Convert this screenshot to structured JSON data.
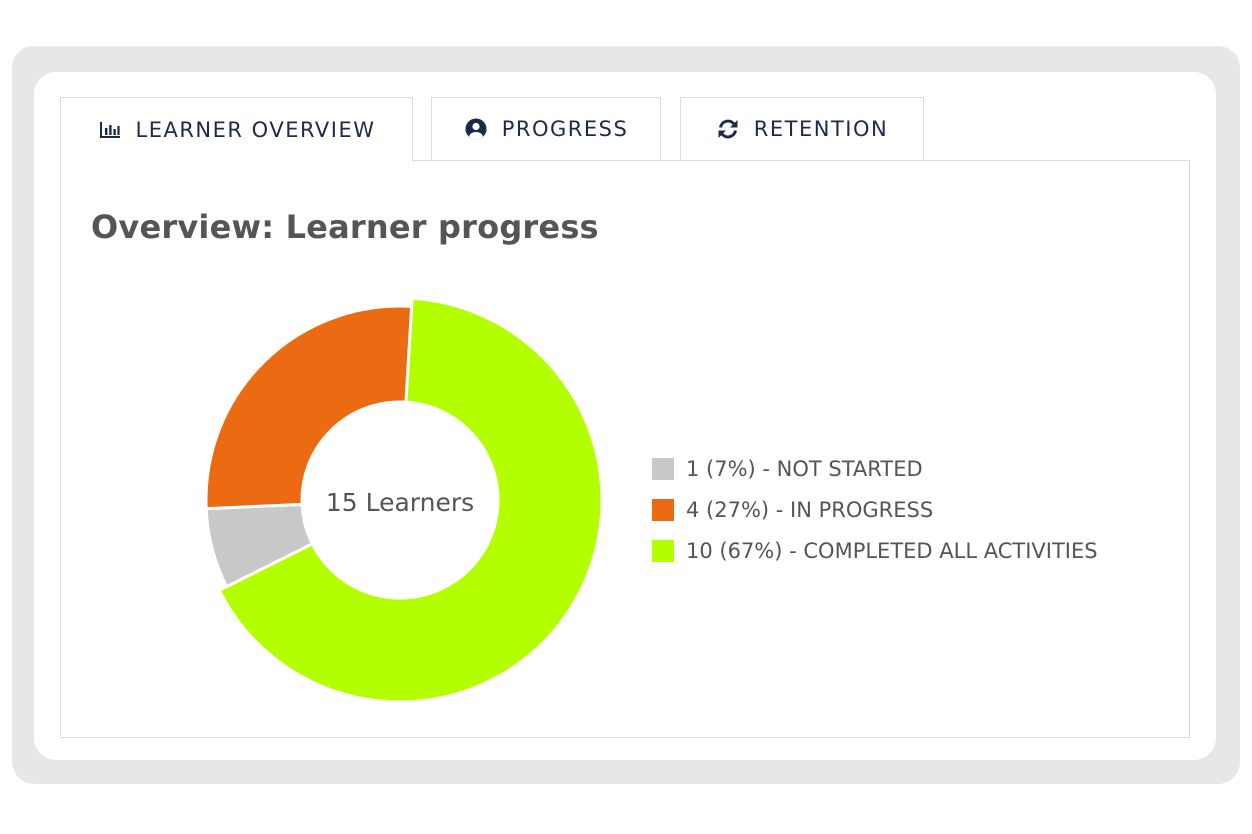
{
  "tabs": [
    {
      "label": "LEARNER OVERVIEW",
      "icon": "bar-chart-icon",
      "active": true
    },
    {
      "label": "PROGRESS",
      "icon": "user-circle-icon",
      "active": false
    },
    {
      "label": "RETENTION",
      "icon": "refresh-icon",
      "active": false
    }
  ],
  "panel": {
    "title": "Overview: Learner progress"
  },
  "colors": {
    "accent_navy": "#1e2a4a",
    "not_started": "#c8c8c8",
    "in_progress": "#ec6b12",
    "completed": "#b3ff00"
  },
  "chart_data": {
    "type": "pie",
    "center_label": "15 Learners",
    "total": 15,
    "slices": [
      {
        "label": "1 (7%) - NOT STARTED",
        "value": 1,
        "color": "#c8c8c8"
      },
      {
        "label": "4 (27%) - IN PROGRESS",
        "value": 4,
        "color": "#ec6b12"
      },
      {
        "label": "10 (67%) - COMPLETED ALL ACTIVITIES",
        "value": 10,
        "color": "#b3ff00"
      }
    ],
    "legend_position": "right"
  }
}
